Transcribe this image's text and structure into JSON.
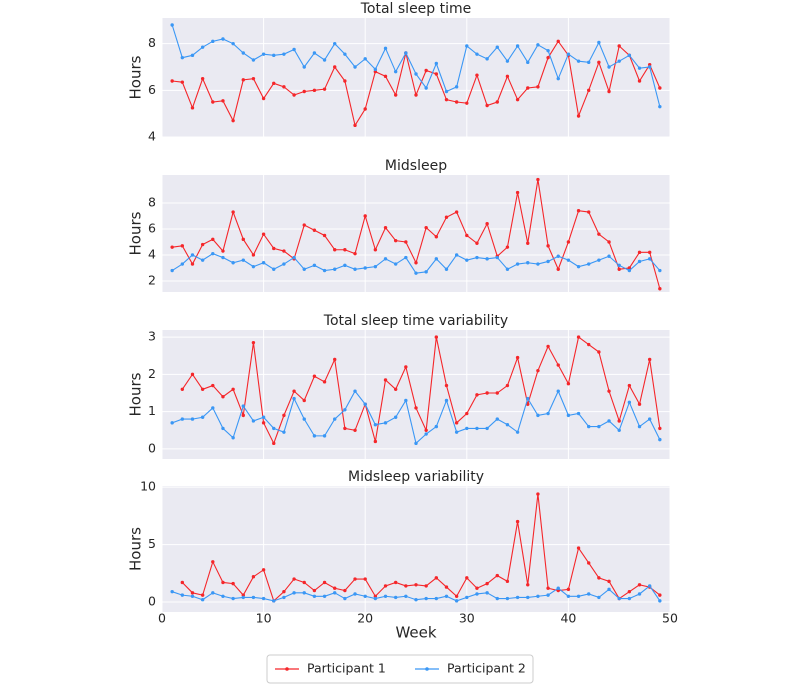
{
  "chart_data": [
    {
      "type": "line",
      "title": "Total sleep time",
      "y_label": "Hours",
      "xlim": [
        0,
        50
      ],
      "ylim": [
        4,
        9.1
      ],
      "yticks": [
        4,
        6,
        8
      ],
      "grid": true,
      "x": [
        1,
        2,
        3,
        4,
        5,
        6,
        7,
        8,
        9,
        10,
        11,
        12,
        13,
        14,
        15,
        16,
        17,
        18,
        19,
        20,
        21,
        22,
        23,
        24,
        25,
        26,
        27,
        28,
        29,
        30,
        31,
        32,
        33,
        34,
        35,
        36,
        37,
        38,
        39,
        40,
        41,
        42,
        43,
        44,
        45,
        46,
        47,
        48,
        49
      ],
      "series": [
        {
          "name": "Participant 1",
          "color": "#f5262a",
          "values": [
            6.4,
            6.35,
            5.25,
            6.5,
            5.5,
            5.55,
            4.7,
            6.45,
            6.5,
            5.65,
            6.3,
            6.15,
            5.8,
            5.95,
            6.0,
            6.05,
            7.0,
            6.4,
            4.5,
            5.2,
            6.8,
            6.6,
            5.8,
            7.6,
            5.8,
            6.85,
            6.7,
            5.6,
            5.5,
            5.45,
            6.65,
            5.35,
            5.5,
            6.6,
            5.6,
            6.1,
            6.15,
            7.4,
            8.1,
            7.5,
            4.9,
            6.0,
            7.2,
            5.95,
            7.9,
            7.5,
            6.4,
            7.1,
            6.1
          ]
        },
        {
          "name": "Participant 2",
          "color": "#3a97f5",
          "values": [
            8.8,
            7.4,
            7.5,
            7.85,
            8.1,
            8.2,
            8.0,
            7.6,
            7.3,
            7.55,
            7.5,
            7.55,
            7.75,
            7.0,
            7.6,
            7.3,
            8.0,
            7.55,
            7.0,
            7.35,
            6.9,
            7.8,
            6.8,
            7.6,
            6.7,
            6.1,
            7.15,
            5.95,
            6.15,
            7.9,
            7.55,
            7.35,
            7.85,
            7.25,
            7.9,
            7.2,
            7.95,
            7.7,
            6.5,
            7.55,
            7.25,
            7.2,
            8.05,
            7.0,
            7.25,
            7.5,
            6.95,
            7.0,
            5.3
          ]
        }
      ]
    },
    {
      "type": "line",
      "title": "Midsleep",
      "y_label": "Hours",
      "xlim": [
        0,
        50
      ],
      "ylim": [
        1.15,
        10.15
      ],
      "yticks": [
        2,
        4,
        6,
        8
      ],
      "grid": true,
      "x": [
        1,
        2,
        3,
        4,
        5,
        6,
        7,
        8,
        9,
        10,
        11,
        12,
        13,
        14,
        15,
        16,
        17,
        18,
        19,
        20,
        21,
        22,
        23,
        24,
        25,
        26,
        27,
        28,
        29,
        30,
        31,
        32,
        33,
        34,
        35,
        36,
        37,
        38,
        39,
        40,
        41,
        42,
        43,
        44,
        45,
        46,
        47,
        48,
        49
      ],
      "series": [
        {
          "name": "Participant 1",
          "color": "#f5262a",
          "values": [
            4.6,
            4.7,
            3.3,
            4.8,
            5.2,
            4.3,
            7.3,
            5.2,
            4.0,
            5.6,
            4.5,
            4.3,
            3.7,
            6.3,
            5.9,
            5.5,
            4.4,
            4.4,
            4.1,
            7.0,
            4.4,
            6.1,
            5.1,
            5.0,
            3.4,
            6.1,
            5.4,
            6.9,
            7.3,
            5.5,
            4.9,
            6.4,
            3.9,
            4.6,
            8.8,
            4.9,
            9.8,
            4.7,
            2.9,
            5.0,
            7.4,
            7.3,
            5.6,
            5.0,
            2.9,
            3.0,
            4.2,
            4.2,
            1.4
          ]
        },
        {
          "name": "Participant 2",
          "color": "#3a97f5",
          "values": [
            2.8,
            3.3,
            4.0,
            3.6,
            4.1,
            3.8,
            3.4,
            3.6,
            3.1,
            3.4,
            2.9,
            3.3,
            3.8,
            2.9,
            3.2,
            2.8,
            2.9,
            3.2,
            2.9,
            3.0,
            3.1,
            3.7,
            3.3,
            3.8,
            2.6,
            2.7,
            3.7,
            2.9,
            4.0,
            3.6,
            3.8,
            3.7,
            3.8,
            2.9,
            3.3,
            3.4,
            3.3,
            3.5,
            3.9,
            3.6,
            3.1,
            3.3,
            3.6,
            3.9,
            3.2,
            2.8,
            3.5,
            3.7,
            2.8
          ]
        }
      ]
    },
    {
      "type": "line",
      "title": "Total sleep time variability",
      "y_label": "Hours",
      "xlim": [
        0,
        50
      ],
      "ylim": [
        -0.27,
        3.19
      ],
      "yticks": [
        0,
        1,
        2,
        3
      ],
      "grid": true,
      "x": [
        1,
        2,
        3,
        4,
        5,
        6,
        7,
        8,
        9,
        10,
        11,
        12,
        13,
        14,
        15,
        16,
        17,
        18,
        19,
        20,
        21,
        22,
        23,
        24,
        25,
        26,
        27,
        28,
        29,
        30,
        31,
        32,
        33,
        34,
        35,
        36,
        37,
        38,
        39,
        40,
        41,
        42,
        43,
        44,
        45,
        46,
        47,
        48,
        49
      ],
      "series": [
        {
          "name": "Participant 1",
          "color": "#f5262a",
          "values": [
            null,
            1.6,
            2.0,
            1.6,
            1.7,
            1.4,
            1.6,
            0.9,
            2.85,
            0.7,
            0.15,
            0.9,
            1.55,
            1.3,
            1.95,
            1.8,
            2.4,
            0.55,
            0.5,
            1.2,
            0.2,
            1.85,
            1.6,
            2.2,
            1.1,
            0.5,
            3.0,
            1.7,
            0.7,
            0.95,
            1.45,
            1.5,
            1.5,
            1.7,
            2.45,
            1.2,
            2.1,
            2.75,
            2.25,
            1.75,
            3.0,
            2.8,
            2.6,
            1.55,
            0.75,
            1.7,
            1.2,
            2.4,
            0.55
          ]
        },
        {
          "name": "Participant 2",
          "color": "#3a97f5",
          "values": [
            0.7,
            0.8,
            0.8,
            0.85,
            1.1,
            0.55,
            0.3,
            1.15,
            0.75,
            0.85,
            0.55,
            0.45,
            1.35,
            0.8,
            0.35,
            0.35,
            0.8,
            1.05,
            1.55,
            1.2,
            0.65,
            0.7,
            0.85,
            1.3,
            0.15,
            0.4,
            0.6,
            1.3,
            0.45,
            0.55,
            0.55,
            0.55,
            0.8,
            0.65,
            0.45,
            1.35,
            0.9,
            0.95,
            1.55,
            0.9,
            0.95,
            0.6,
            0.6,
            0.75,
            0.5,
            1.25,
            0.6,
            0.8,
            0.25
          ]
        }
      ]
    },
    {
      "type": "line",
      "title": "Midsleep variability",
      "y_label": "Hours",
      "x_label": "Week",
      "xlim": [
        0,
        50
      ],
      "xticks": [
        0,
        10,
        20,
        30,
        40,
        50
      ],
      "ylim": [
        -0.87,
        10.1
      ],
      "yticks": [
        0,
        5,
        10
      ],
      "grid": true,
      "x": [
        1,
        2,
        3,
        4,
        5,
        6,
        7,
        8,
        9,
        10,
        11,
        12,
        13,
        14,
        15,
        16,
        17,
        18,
        19,
        20,
        21,
        22,
        23,
        24,
        25,
        26,
        27,
        28,
        29,
        30,
        31,
        32,
        33,
        34,
        35,
        36,
        37,
        38,
        39,
        40,
        41,
        42,
        43,
        44,
        45,
        46,
        47,
        48,
        49
      ],
      "series": [
        {
          "name": "Participant 1",
          "color": "#f5262a",
          "values": [
            null,
            1.7,
            0.8,
            0.6,
            3.5,
            1.7,
            1.6,
            0.6,
            2.2,
            2.8,
            0.1,
            0.9,
            2.0,
            1.7,
            1.0,
            1.7,
            1.2,
            1.0,
            2.0,
            2.0,
            0.5,
            1.4,
            1.7,
            1.4,
            1.5,
            1.4,
            2.1,
            1.3,
            0.5,
            2.1,
            1.2,
            1.6,
            2.3,
            1.8,
            7.0,
            1.5,
            9.4,
            1.2,
            1.0,
            1.1,
            4.7,
            3.4,
            2.1,
            1.8,
            0.3,
            0.9,
            1.5,
            1.3,
            0.6
          ]
        },
        {
          "name": "Participant 2",
          "color": "#3a97f5",
          "values": [
            0.9,
            0.6,
            0.5,
            0.2,
            0.8,
            0.5,
            0.3,
            0.4,
            0.4,
            0.3,
            0.1,
            0.4,
            0.8,
            0.8,
            0.5,
            0.5,
            0.8,
            0.3,
            0.7,
            0.5,
            0.3,
            0.5,
            0.4,
            0.5,
            0.2,
            0.3,
            0.3,
            0.5,
            0.1,
            0.4,
            0.7,
            0.8,
            0.3,
            0.3,
            0.4,
            0.4,
            0.5,
            0.6,
            1.2,
            0.5,
            0.5,
            0.7,
            0.4,
            1.1,
            0.3,
            0.3,
            0.7,
            1.4,
            0.1
          ]
        }
      ]
    }
  ]
}
